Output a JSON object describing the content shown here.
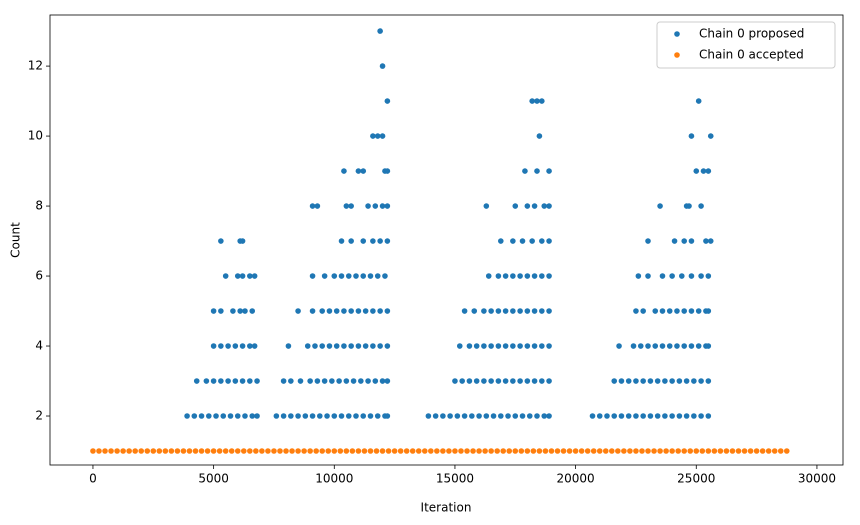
{
  "chart_data": {
    "type": "scatter",
    "x_label": "Iteration",
    "y_label": "Count",
    "xlim": [
      -1780,
      31080
    ],
    "ylim": [
      0.6,
      13.46
    ],
    "xticks": [
      0,
      5000,
      10000,
      15000,
      20000,
      25000,
      30000
    ],
    "yticks": [
      2,
      4,
      6,
      8,
      10,
      12
    ],
    "grid": false,
    "legend": "upper right",
    "series": [
      {
        "name": "Chain 0 proposed",
        "color": "#1f77b4",
        "x": [
          3900,
          4200,
          4500,
          4800,
          5100,
          5400,
          5700,
          6000,
          6300,
          6600,
          6800,
          7600,
          7900,
          8200,
          8500,
          8800,
          9100,
          9400,
          9700,
          10000,
          10300,
          10600,
          10900,
          11200,
          11500,
          11800,
          12100,
          12200,
          13900,
          14200,
          14500,
          14800,
          15100,
          15400,
          15700,
          16000,
          16300,
          16600,
          16900,
          17200,
          17500,
          17800,
          18100,
          18400,
          18700,
          18900,
          20700,
          21000,
          21300,
          21600,
          21900,
          22200,
          22500,
          22800,
          23100,
          23400,
          23700,
          24000,
          24300,
          24600,
          24900,
          25200,
          25500,
          4300,
          4700,
          5000,
          5300,
          5600,
          5900,
          6200,
          6500,
          6800,
          7900,
          8200,
          8600,
          9000,
          9300,
          9600,
          9900,
          10200,
          10500,
          10800,
          11100,
          11400,
          11700,
          12000,
          12200,
          15000,
          15300,
          15600,
          15900,
          16200,
          16500,
          16800,
          17100,
          17400,
          17700,
          18000,
          18300,
          18600,
          18900,
          21600,
          21900,
          22200,
          22500,
          22800,
          23100,
          23400,
          23700,
          24000,
          24300,
          24600,
          24900,
          25200,
          25500,
          5000,
          5300,
          5600,
          5900,
          6200,
          6500,
          6700,
          8100,
          8900,
          9200,
          9500,
          9800,
          10100,
          10400,
          10700,
          11000,
          11300,
          11600,
          11900,
          12200,
          15200,
          15600,
          15900,
          16200,
          16500,
          16800,
          17100,
          17400,
          17700,
          18000,
          18300,
          18600,
          18900,
          21800,
          22400,
          22700,
          23000,
          23300,
          23600,
          23900,
          24200,
          24500,
          24800,
          25100,
          25400,
          25500,
          5000,
          5300,
          5800,
          6100,
          6300,
          6600,
          8500,
          9100,
          9500,
          9800,
          10100,
          10400,
          10700,
          11000,
          11300,
          11600,
          11900,
          12200,
          15400,
          15800,
          16200,
          16500,
          16800,
          17100,
          17400,
          17700,
          18000,
          18300,
          18600,
          18900,
          22500,
          22800,
          23300,
          23600,
          23900,
          24200,
          24500,
          24800,
          25100,
          25400,
          25500,
          5500,
          6000,
          6200,
          6500,
          6700,
          9100,
          9600,
          10000,
          10300,
          10600,
          10900,
          11200,
          11500,
          11800,
          12100,
          16400,
          16800,
          17100,
          17400,
          17700,
          18000,
          18300,
          18600,
          18900,
          22600,
          23000,
          23600,
          24000,
          24400,
          24800,
          25200,
          25500,
          5300,
          6100,
          6200,
          10300,
          10700,
          11200,
          11600,
          11900,
          12200,
          16900,
          17400,
          17800,
          18200,
          18600,
          18900,
          23000,
          24100,
          24500,
          24800,
          25400,
          25600,
          9100,
          9300,
          10500,
          10700,
          11400,
          11700,
          12000,
          12200,
          16300,
          17500,
          18000,
          18300,
          18700,
          18900,
          23500,
          24600,
          24700,
          25200,
          10400,
          11000,
          11200,
          12100,
          12200,
          17900,
          18400,
          18900,
          25000,
          25300,
          25500,
          11600,
          11800,
          12000,
          18500,
          24800,
          25600,
          12200,
          18200,
          18400,
          18600,
          25100,
          12000,
          11900
        ],
        "values": [
          2,
          2,
          2,
          2,
          2,
          2,
          2,
          2,
          2,
          2,
          2,
          2,
          2,
          2,
          2,
          2,
          2,
          2,
          2,
          2,
          2,
          2,
          2,
          2,
          2,
          2,
          2,
          2,
          2,
          2,
          2,
          2,
          2,
          2,
          2,
          2,
          2,
          2,
          2,
          2,
          2,
          2,
          2,
          2,
          2,
          2,
          2,
          2,
          2,
          2,
          2,
          2,
          2,
          2,
          2,
          2,
          2,
          2,
          2,
          2,
          2,
          2,
          2,
          3,
          3,
          3,
          3,
          3,
          3,
          3,
          3,
          3,
          3,
          3,
          3,
          3,
          3,
          3,
          3,
          3,
          3,
          3,
          3,
          3,
          3,
          3,
          3,
          3,
          3,
          3,
          3,
          3,
          3,
          3,
          3,
          3,
          3,
          3,
          3,
          3,
          3,
          3,
          3,
          3,
          3,
          3,
          3,
          3,
          3,
          3,
          3,
          3,
          3,
          3,
          3,
          4,
          4,
          4,
          4,
          4,
          4,
          4,
          4,
          4,
          4,
          4,
          4,
          4,
          4,
          4,
          4,
          4,
          4,
          4,
          4,
          4,
          4,
          4,
          4,
          4,
          4,
          4,
          4,
          4,
          4,
          4,
          4,
          4,
          4,
          4,
          4,
          4,
          4,
          4,
          4,
          4,
          4,
          4,
          4,
          4,
          4,
          5,
          5,
          5,
          5,
          5,
          5,
          5,
          5,
          5,
          5,
          5,
          5,
          5,
          5,
          5,
          5,
          5,
          5,
          5,
          5,
          5,
          5,
          5,
          5,
          5,
          5,
          5,
          5,
          5,
          5,
          5,
          5,
          5,
          5,
          5,
          5,
          5,
          5,
          5,
          5,
          5,
          6,
          6,
          6,
          6,
          6,
          6,
          6,
          6,
          6,
          6,
          6,
          6,
          6,
          6,
          6,
          6,
          6,
          6,
          6,
          6,
          6,
          6,
          6,
          6,
          6,
          6,
          6,
          6,
          6,
          6,
          6,
          6,
          7,
          7,
          7,
          7,
          7,
          7,
          7,
          7,
          7,
          7,
          7,
          7,
          7,
          7,
          7,
          7,
          7,
          7,
          7,
          7,
          7,
          8,
          8,
          8,
          8,
          8,
          8,
          8,
          8,
          8,
          8,
          8,
          8,
          8,
          8,
          8,
          8,
          8,
          8,
          9,
          9,
          9,
          9,
          9,
          9,
          9,
          9,
          9,
          9,
          9,
          10,
          10,
          10,
          10,
          10,
          10,
          11,
          11,
          11,
          11,
          11,
          12,
          13
        ]
      },
      {
        "name": "Chain 0 accepted",
        "color": "#ff7f0e",
        "x": [
          0,
          250,
          500,
          750,
          1000,
          1250,
          1500,
          1750,
          2000,
          2250,
          2500,
          2750,
          3000,
          3250,
          3500,
          3750,
          4000,
          4250,
          4500,
          4750,
          5000,
          5250,
          5500,
          5750,
          6000,
          6250,
          6500,
          6750,
          7000,
          7250,
          7500,
          7750,
          8000,
          8250,
          8500,
          8750,
          9000,
          9250,
          9500,
          9750,
          10000,
          10250,
          10500,
          10750,
          11000,
          11250,
          11500,
          11750,
          12000,
          12250,
          12500,
          12750,
          13000,
          13250,
          13500,
          13750,
          14000,
          14250,
          14500,
          14750,
          15000,
          15250,
          15500,
          15750,
          16000,
          16250,
          16500,
          16750,
          17000,
          17250,
          17500,
          17750,
          18000,
          18250,
          18500,
          18750,
          19000,
          19250,
          19500,
          19750,
          20000,
          20250,
          20500,
          20750,
          21000,
          21250,
          21500,
          21750,
          22000,
          22250,
          22500,
          22750,
          23000,
          23250,
          23500,
          23750,
          24000,
          24250,
          24500,
          24750,
          25000,
          25250,
          25500,
          25750,
          26000,
          26250,
          26500,
          26750,
          27000,
          27250,
          27500,
          27750,
          28000,
          28250,
          28500,
          28750
        ],
        "values": [
          1,
          1,
          1,
          1,
          1,
          1,
          1,
          1,
          1,
          1,
          1,
          1,
          1,
          1,
          1,
          1,
          1,
          1,
          1,
          1,
          1,
          1,
          1,
          1,
          1,
          1,
          1,
          1,
          1,
          1,
          1,
          1,
          1,
          1,
          1,
          1,
          1,
          1,
          1,
          1,
          1,
          1,
          1,
          1,
          1,
          1,
          1,
          1,
          1,
          1,
          1,
          1,
          1,
          1,
          1,
          1,
          1,
          1,
          1,
          1,
          1,
          1,
          1,
          1,
          1,
          1,
          1,
          1,
          1,
          1,
          1,
          1,
          1,
          1,
          1,
          1,
          1,
          1,
          1,
          1,
          1,
          1,
          1,
          1,
          1,
          1,
          1,
          1,
          1,
          1,
          1,
          1,
          1,
          1,
          1,
          1,
          1,
          1,
          1,
          1,
          1,
          1,
          1,
          1,
          1,
          1,
          1,
          1,
          1,
          1,
          1,
          1,
          1,
          1,
          1,
          1
        ]
      }
    ]
  }
}
